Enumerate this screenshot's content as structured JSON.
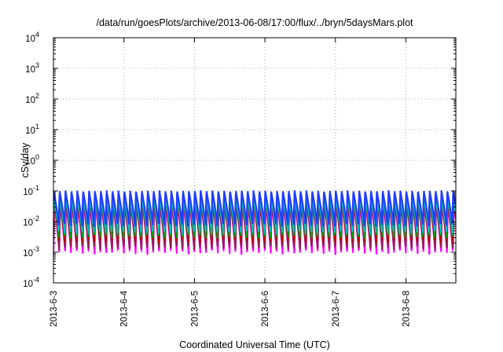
{
  "chart_data": {
    "type": "line",
    "title": "/data/run/goesPlots/archive/2013-06-08/17:00/flux/../bryn/5daysMars.plot",
    "xlabel": "Coordinated Universal Time (UTC)",
    "ylabel": "cSv/day",
    "y_scale": "log",
    "ylim": [
      0.0001,
      10000
    ],
    "y_ticks": [
      {
        "base": "10",
        "exp": "-4"
      },
      {
        "base": "10",
        "exp": "-3"
      },
      {
        "base": "10",
        "exp": "-2"
      },
      {
        "base": "10",
        "exp": "-1"
      },
      {
        "base": "10",
        "exp": "0"
      },
      {
        "base": "10",
        "exp": "1"
      },
      {
        "base": "10",
        "exp": "2"
      },
      {
        "base": "10",
        "exp": "3"
      },
      {
        "base": "10",
        "exp": "4"
      }
    ],
    "xlim": [
      "2013-06-03 00:00",
      "2013-06-08 17:00"
    ],
    "x_ticks": [
      "2013-6-3",
      "2013-6-4",
      "2013-6-5",
      "2013-6-6",
      "2013-6-7",
      "2013-6-8"
    ],
    "grid": true,
    "grid_style": "dotted",
    "orbit_period_hours": 2.0,
    "series": [
      {
        "color": "#ff00ff",
        "peak": 0.04,
        "trough": 0.00085
      },
      {
        "color": "#8b2252",
        "peak": 0.05,
        "trough": 0.0012
      },
      {
        "color": "#c00000",
        "peak": 0.07,
        "trough": 0.002
      },
      {
        "color": "#00a000",
        "peak": 0.075,
        "trough": 0.0028
      },
      {
        "color": "#00bfbf",
        "peak": 0.06,
        "trough": 0.004
      },
      {
        "color": "#1e3cff",
        "peak": 0.1,
        "trough": 0.007
      }
    ]
  }
}
